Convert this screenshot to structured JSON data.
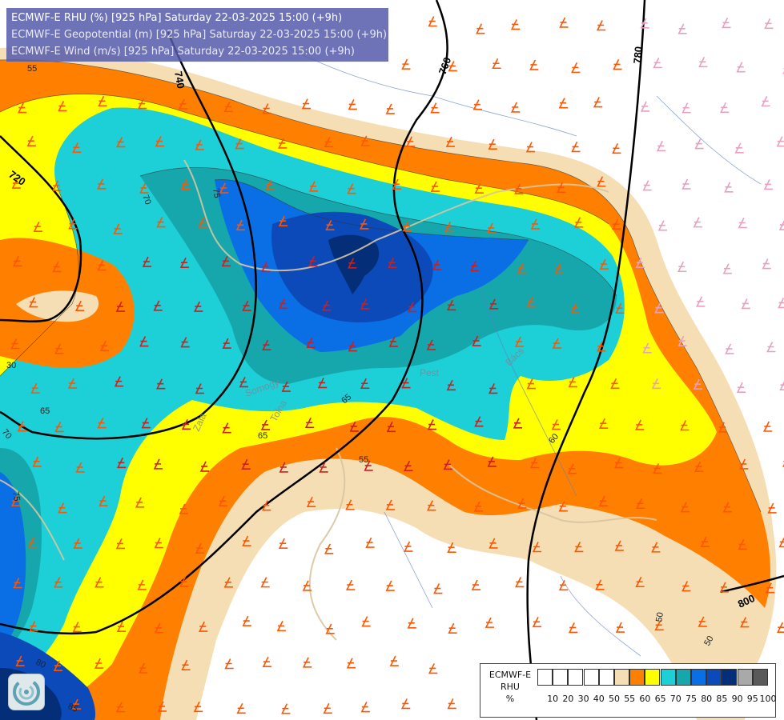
{
  "titles": [
    "ECMWF-E RHU (%) [925 hPa] Saturday 22-03-2025 15:00 (+9h)",
    "ECMWF-E Geopotential (m) [925 hPa] Saturday 22-03-2025 15:00 (+9h)",
    "ECMWF-E Wind (m/s) [925 hPa] Saturday 22-03-2025 15:00 (+9h)"
  ],
  "legend": {
    "model": "ECMWF-E",
    "variable": "RHU",
    "unit": "%",
    "ticks": [
      "10",
      "20",
      "30",
      "40",
      "50",
      "55",
      "60",
      "65",
      "70",
      "75",
      "80",
      "85",
      "90",
      "95",
      "100"
    ],
    "colors": [
      "#ffffff",
      "#ffffff",
      "#ffffff",
      "#ffffff",
      "#ffffff",
      "#f5deb3",
      "#ff8000",
      "#ffff00",
      "#1dcfd6",
      "#16a7ac",
      "#0a6fe5",
      "#0b4ab8",
      "#042f78",
      "#a9a9a9",
      "#5a5a5a"
    ]
  },
  "rhu_contour_labels": [
    "55",
    "70",
    "75",
    "30",
    "65",
    "55",
    "65",
    "60",
    "50",
    "50",
    "80",
    "85",
    "65",
    "70",
    "75"
  ],
  "geopotential_labels": [
    "720",
    "740",
    "760",
    "780",
    "800"
  ],
  "map_place_labels": [
    "Pest",
    "Bács",
    "Somogy",
    "Tolna",
    "Zala"
  ],
  "logo": {
    "icon": "weather-service-logo-icon"
  }
}
